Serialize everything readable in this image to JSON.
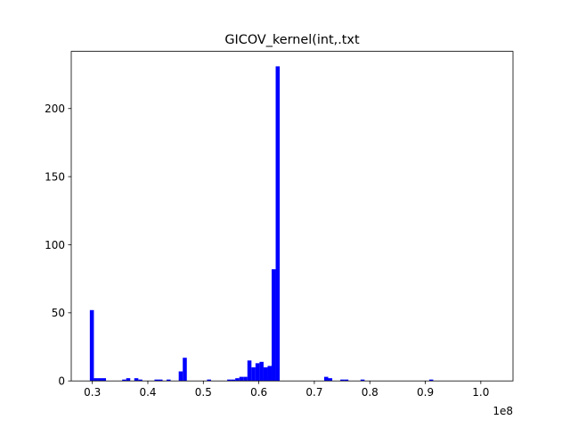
{
  "chart_data": {
    "type": "bar",
    "title": "GICOV_kernel(int,.txt",
    "xlabel": "",
    "ylabel": "",
    "x_offset_label": "1e8",
    "color": "#0000ff",
    "grid": false,
    "xlim": [
      0.262,
      1.058
    ],
    "ylim": [
      0,
      242
    ],
    "x_ticks": [
      {
        "value": 0.3,
        "label": "0.3"
      },
      {
        "value": 0.4,
        "label": "0.4"
      },
      {
        "value": 0.5,
        "label": "0.5"
      },
      {
        "value": 0.6,
        "label": "0.6"
      },
      {
        "value": 0.7,
        "label": "0.7"
      },
      {
        "value": 0.8,
        "label": "0.8"
      },
      {
        "value": 0.9,
        "label": "0.9"
      },
      {
        "value": 1.0,
        "label": "1.0"
      }
    ],
    "y_ticks": [
      {
        "value": 0,
        "label": "0"
      },
      {
        "value": 50,
        "label": "50"
      },
      {
        "value": 100,
        "label": "100"
      },
      {
        "value": 150,
        "label": "150"
      },
      {
        "value": 200,
        "label": "200"
      }
    ],
    "bin_start": 0.2955,
    "bin_width": 0.00728,
    "counts": [
      52,
      2,
      2,
      2,
      0,
      0,
      0,
      0,
      1,
      2,
      0,
      2,
      1,
      0,
      0,
      0,
      1,
      1,
      0,
      1,
      0,
      0,
      7,
      17,
      0,
      0,
      0,
      0,
      0,
      1,
      0,
      0,
      0,
      0,
      1,
      1,
      2,
      3,
      3,
      15,
      10,
      13,
      14,
      10,
      11,
      82,
      231,
      0,
      0,
      0,
      0,
      0,
      0,
      0,
      0,
      0,
      0,
      0,
      3,
      2,
      0,
      0,
      1,
      1,
      0,
      0,
      0,
      1,
      0,
      0,
      0,
      0,
      0,
      0,
      0,
      0,
      0,
      0,
      0,
      0,
      0,
      0,
      0,
      0,
      1,
      0,
      0,
      0,
      0,
      0,
      0,
      0,
      0,
      0,
      0,
      0,
      0,
      0,
      0,
      0,
      0,
      0,
      0,
      0,
      0,
      0,
      0,
      0,
      0,
      0,
      0,
      0,
      0,
      0,
      0,
      0,
      0,
      0,
      0,
      0,
      1
    ]
  }
}
